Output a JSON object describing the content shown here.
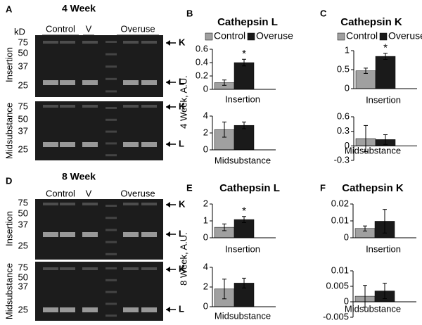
{
  "gels": [
    {
      "panel": "A",
      "title": "4 Week",
      "unit": "kD",
      "groups": [
        "Control",
        "V",
        "Overuse"
      ],
      "rows": [
        {
          "label": "Insertion",
          "markers": [
            75,
            50,
            37,
            25
          ],
          "bands": [
            "K",
            "L"
          ]
        },
        {
          "label": "Midsubstance",
          "markers": [
            75,
            50,
            37,
            25
          ],
          "bands": [
            "K",
            "L"
          ]
        }
      ]
    },
    {
      "panel": "D",
      "title": "8 Week",
      "groups": [
        "Control",
        "V",
        "Overuse"
      ],
      "rows": [
        {
          "label": "Insertion",
          "markers": [
            75,
            50,
            37,
            25
          ],
          "bands": [
            "K",
            "L"
          ]
        },
        {
          "label": "Midsubstance",
          "markers": [
            75,
            50,
            37,
            25
          ],
          "bands": [
            "K",
            "L"
          ]
        }
      ]
    }
  ],
  "chart_data": [
    {
      "type": "bar",
      "panel": "B",
      "title": "Cathepsin L",
      "ylabel": "4 Week, A.U.",
      "xlabel": "Insertion",
      "annotation": "*",
      "ylim": [
        0,
        0.6
      ],
      "yticks": [
        0,
        0.2,
        0.4,
        0.6
      ],
      "series": [
        {
          "name": "Control",
          "color": "#a0a0a0",
          "values": [
            0.1
          ],
          "errors": [
            0.04
          ]
        },
        {
          "name": "Overuse",
          "color": "#1a1a1a",
          "values": [
            0.4
          ],
          "errors": [
            0.05
          ]
        }
      ]
    },
    {
      "type": "bar",
      "xlabel": "Midsubstance",
      "ylim": [
        0,
        4
      ],
      "yticks": [
        0,
        2,
        4
      ],
      "series": [
        {
          "color": "#a0a0a0",
          "values": [
            2.4
          ],
          "errors": [
            0.9
          ]
        },
        {
          "color": "#1a1a1a",
          "values": [
            2.9
          ],
          "errors": [
            0.4
          ]
        }
      ]
    },
    {
      "type": "bar",
      "panel": "C",
      "title": "Cathepsin K",
      "xlabel": "Insertion",
      "annotation": "*",
      "ylim": [
        0,
        1
      ],
      "yticks": [
        0,
        0.5,
        1
      ],
      "series": [
        {
          "name": "Control",
          "color": "#a0a0a0",
          "values": [
            0.47
          ],
          "errors": [
            0.07
          ]
        },
        {
          "name": "Overuse",
          "color": "#1a1a1a",
          "values": [
            0.85
          ],
          "errors": [
            0.08
          ]
        }
      ]
    },
    {
      "type": "bar",
      "xlabel": "Midsubstance",
      "ylim": [
        -0.3,
        0.6
      ],
      "yticks": [
        -0.3,
        0,
        0.3,
        0.6
      ],
      "series": [
        {
          "color": "#a0a0a0",
          "values": [
            0.15
          ],
          "errors": [
            0.27
          ]
        },
        {
          "color": "#1a1a1a",
          "values": [
            0.13
          ],
          "errors": [
            0.1
          ]
        }
      ]
    },
    {
      "type": "bar",
      "panel": "E",
      "title": "Cathepsin L",
      "ylabel": "8 Week, A.U.",
      "xlabel": "Insertion",
      "annotation": "*",
      "ylim": [
        0,
        2
      ],
      "yticks": [
        0,
        1,
        2
      ],
      "series": [
        {
          "color": "#a0a0a0",
          "values": [
            0.62
          ],
          "errors": [
            0.2
          ]
        },
        {
          "color": "#1a1a1a",
          "values": [
            1.08
          ],
          "errors": [
            0.18
          ]
        }
      ]
    },
    {
      "type": "bar",
      "xlabel": "Midsubstance",
      "ylim": [
        0,
        4
      ],
      "yticks": [
        0,
        2,
        4
      ],
      "series": [
        {
          "color": "#a0a0a0",
          "values": [
            1.8
          ],
          "errors": [
            1.0
          ]
        },
        {
          "color": "#1a1a1a",
          "values": [
            2.4
          ],
          "errors": [
            0.5
          ]
        }
      ]
    },
    {
      "type": "bar",
      "panel": "F",
      "title": "Cathepsin K",
      "xlabel": "Insertion",
      "ylim": [
        0,
        0.02
      ],
      "yticks": [
        0,
        0.01,
        0.02
      ],
      "series": [
        {
          "color": "#a0a0a0",
          "values": [
            0.0055
          ],
          "errors": [
            0.0015
          ]
        },
        {
          "color": "#1a1a1a",
          "values": [
            0.0098
          ],
          "errors": [
            0.007
          ]
        }
      ]
    },
    {
      "type": "bar",
      "xlabel": "Midsubstance",
      "ylim": [
        -0.005,
        0.01
      ],
      "yticks": [
        -0.005,
        0,
        0.005,
        0.01
      ],
      "series": [
        {
          "color": "#a0a0a0",
          "values": [
            0.0018
          ],
          "errors": [
            0.0035
          ]
        },
        {
          "color": "#1a1a1a",
          "values": [
            0.0035
          ],
          "errors": [
            0.0025
          ]
        }
      ]
    }
  ]
}
